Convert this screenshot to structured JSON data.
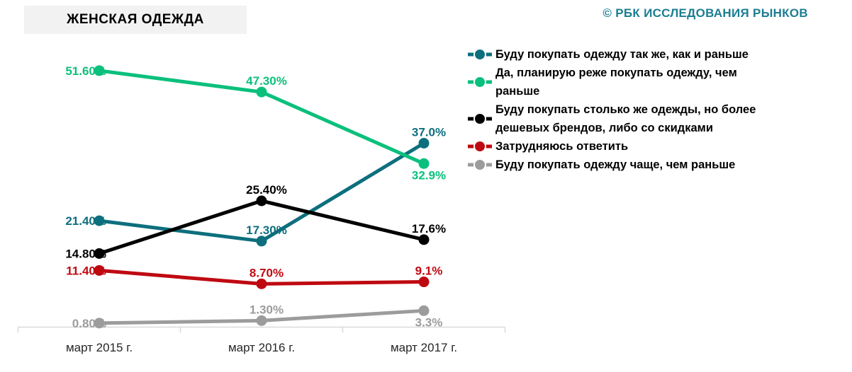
{
  "copyright": "© РБК ИССЛЕДОВАНИЯ РЫНКОВ",
  "chart_data": {
    "type": "line",
    "title": "ЖЕНСКАЯ ОДЕЖДА",
    "xlabel": "",
    "ylabel": "",
    "ylim": [
      0,
      55
    ],
    "grid": false,
    "legend_position": "right",
    "axis_color": "#d9d9d9",
    "categories": [
      "март 2015 г.",
      "март 2016 г.",
      "март 2017 г."
    ],
    "series": [
      {
        "name": "Буду покупать одежду так же, как и раньше",
        "color": "#0d6f7d",
        "values": [
          21.4,
          17.3,
          37.0
        ],
        "labels": [
          "21.40%",
          "17.30%",
          "37.0%"
        ],
        "label_positions": [
          "left",
          "above",
          "above"
        ]
      },
      {
        "name": "Да, планирую реже покупать одежду, чем раньше",
        "color": "#0bc07c",
        "values": [
          51.6,
          47.3,
          32.9
        ],
        "labels": [
          "51.60%",
          "47.30%",
          "32.9%"
        ],
        "label_positions": [
          "left",
          "above",
          "below"
        ]
      },
      {
        "name": "Буду покупать столько же одежды, но более дешевых брендов, либо со скидками",
        "color": "#000000",
        "values": [
          14.8,
          25.4,
          17.6
        ],
        "labels": [
          "14.80%",
          "25.40%",
          "17.6%"
        ],
        "label_positions": [
          "left",
          "above",
          "above"
        ]
      },
      {
        "name": "Затрудняюсь ответить",
        "color": "#bf0911",
        "values": [
          11.4,
          8.7,
          9.1
        ],
        "labels": [
          "11.40%",
          "8.70%",
          "9.1%"
        ],
        "label_positions": [
          "left",
          "above",
          "above"
        ]
      },
      {
        "name": "Буду покупать одежду чаще, чем раньше",
        "color": "#9c9c9c",
        "values": [
          0.8,
          1.3,
          3.3
        ],
        "labels": [
          "0.80%",
          "1.30%",
          "3.3%"
        ],
        "label_positions": [
          "left",
          "above",
          "below"
        ]
      }
    ]
  }
}
